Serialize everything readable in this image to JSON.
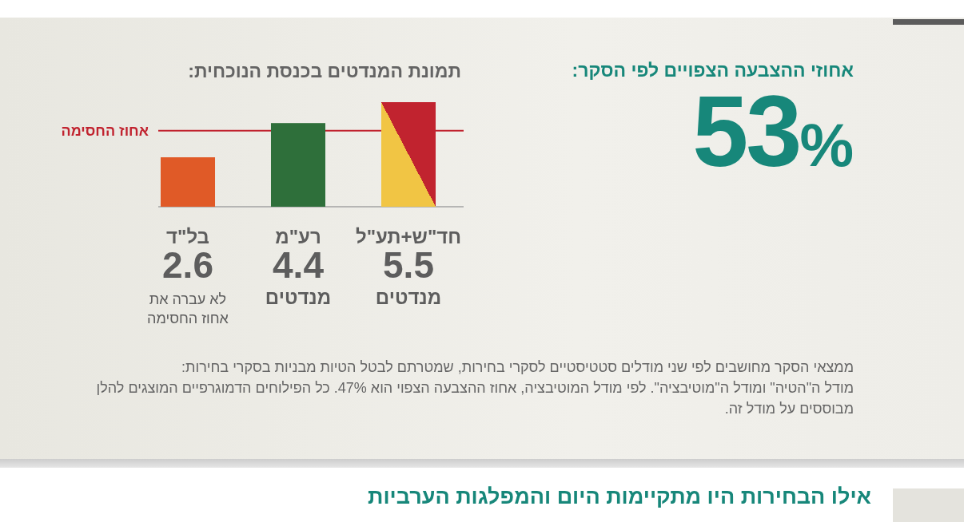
{
  "chart_data": [
    {
      "type": "other",
      "title": "אחוזי ההצבעה הצפויים לפי הסקר:",
      "annotations": [
        "53%",
        "ממצאי הסקר מחושבים לפי שני מודלים סטטיסטיים לסקרי בחירות, שמטרתם לבטל הטיות מבניות בסקרי בחירות:",
        "מודל ה\"הטיה\" ומודל ה\"מוטיבציה\". לפי מודל המוטיבציה, אחוז ההצבעה הצפוי הוא 47%. כל הפילוחים הדמוגרפיים המוצגים להלן מבוססים על מודל זה."
      ]
    },
    {
      "type": "bar",
      "title": "תמונת המנדטים בכנסת הנוכחית:",
      "categories": [
        "בל\"ד",
        "רע\"מ",
        "חד\"ש+תע\"ל"
      ],
      "values": [
        2.6,
        4.4,
        5.5
      ],
      "colors": [
        "#e05a27",
        "#2e6f3a",
        "#c1232f"
      ],
      "data_labels": true,
      "ref_lines": [
        {
          "axis": "y",
          "value": 4,
          "label": "אחוז החסימה",
          "color": "#c1232f"
        }
      ],
      "annotations": [
        "לא עברה את אחוז החסימה",
        "מנדטים",
        "מנדטים"
      ]
    },
    {
      "type": "other",
      "title": "אילו הבחירות היו מתקיימות היום והמפלגות הערביות"
    }
  ]
}
